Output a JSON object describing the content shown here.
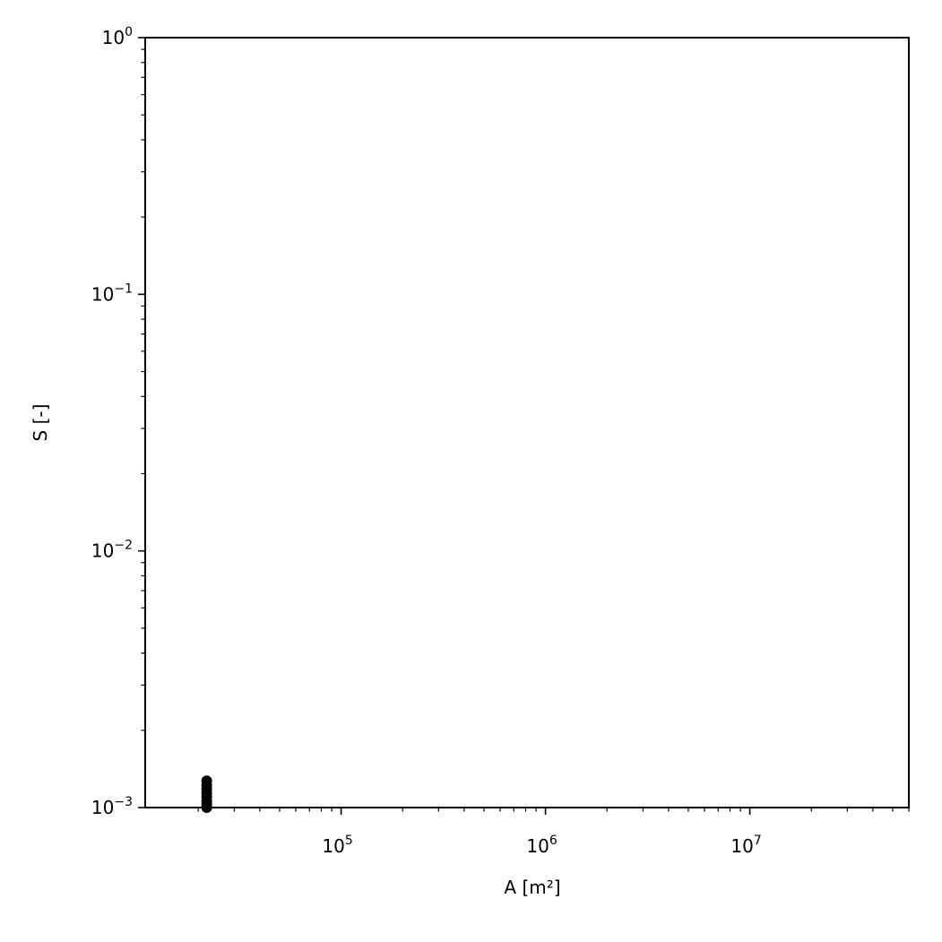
{
  "chart_data": {
    "type": "scatter",
    "xlabel": "A [m²]",
    "ylabel": "S [-]",
    "xscale": "log",
    "yscale": "log",
    "xlim": [
      11000,
      60000000
    ],
    "ylim": [
      0.001,
      1
    ],
    "x_tick_labels": [
      {
        "base": "10",
        "exp": "5",
        "value": 100000
      },
      {
        "base": "10",
        "exp": "6",
        "value": 1000000
      },
      {
        "base": "10",
        "exp": "7",
        "value": 10000000
      }
    ],
    "y_tick_labels": [
      {
        "base": "10",
        "exp": "0",
        "value": 1
      },
      {
        "base": "10",
        "exp": "−1",
        "value": 0.1
      },
      {
        "base": "10",
        "exp": "−2",
        "value": 0.01
      },
      {
        "base": "10",
        "exp": "−3",
        "value": 0.001
      }
    ],
    "grid": false,
    "marker_color": "#000000",
    "series": [
      {
        "x": [
          22000,
          22000,
          22000,
          22000,
          22000,
          22000,
          22000,
          22000
        ],
        "y": [
          0.00127,
          0.00122,
          0.00118,
          0.00114,
          0.0011,
          0.00106,
          0.00103,
          0.001
        ]
      }
    ]
  }
}
